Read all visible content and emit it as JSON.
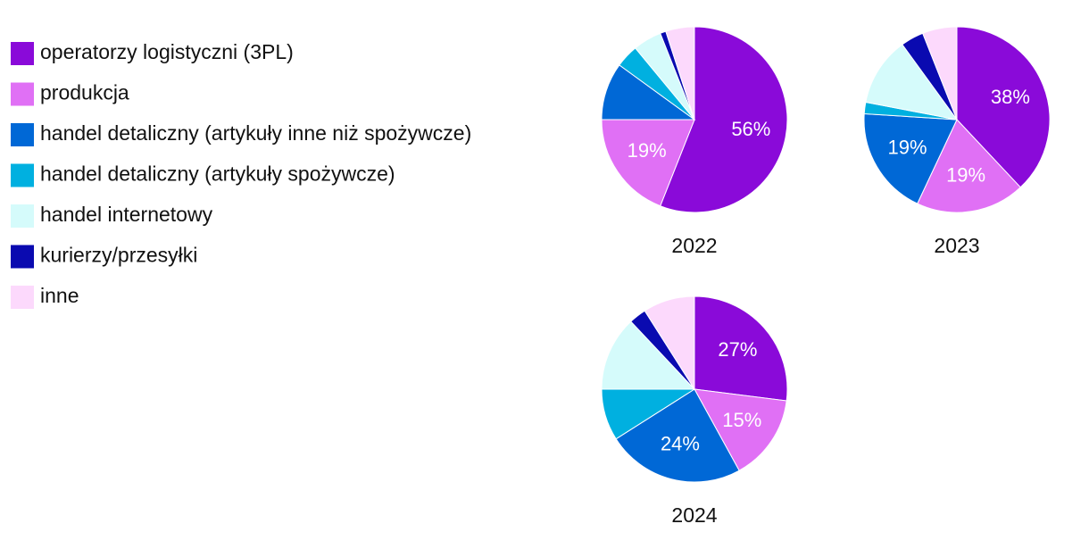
{
  "chart_data": [
    {
      "type": "pie",
      "title": "2022",
      "categories": [
        "operatorzy logistyczni (3PL)",
        "produkcja",
        "handel detaliczny (artykuły inne niż spożywcze)",
        "handel detaliczny (artykuły spożywcze)",
        "handel internetowy",
        "kurierzy/przesyłki",
        "inne"
      ],
      "values": [
        56,
        19,
        10,
        4,
        5,
        1,
        5
      ],
      "value_labels": [
        "56%",
        "19%",
        null,
        null,
        null,
        null,
        null
      ],
      "colors": [
        "#8a0ad9",
        "#e070f5",
        "#0068d6",
        "#00b0e0",
        "#d5fbfb",
        "#0a0ab0",
        "#fcd9fc"
      ]
    },
    {
      "type": "pie",
      "title": "2023",
      "categories": [
        "operatorzy logistyczni (3PL)",
        "produkcja",
        "handel detaliczny (artykuły inne niż spożywcze)",
        "handel detaliczny (artykuły spożywcze)",
        "handel internetowy",
        "kurierzy/przesyłki",
        "inne"
      ],
      "values": [
        38,
        19,
        19,
        2,
        12,
        4,
        6
      ],
      "value_labels": [
        "38%",
        "19%",
        "19%",
        null,
        null,
        null,
        null
      ],
      "colors": [
        "#8a0ad9",
        "#e070f5",
        "#0068d6",
        "#00b0e0",
        "#d5fbfb",
        "#0a0ab0",
        "#fcd9fc"
      ]
    },
    {
      "type": "pie",
      "title": "2024",
      "categories": [
        "operatorzy logistyczni (3PL)",
        "produkcja",
        "handel detaliczny (artykuły inne niż spożywcze)",
        "handel detaliczny (artykuły spożywcze)",
        "handel internetowy",
        "kurierzy/przesyłki",
        "inne"
      ],
      "values": [
        27,
        15,
        24,
        9,
        13,
        3,
        9
      ],
      "value_labels": [
        "27%",
        "15%",
        "24%",
        null,
        null,
        null,
        null
      ],
      "colors": [
        "#8a0ad9",
        "#e070f5",
        "#0068d6",
        "#00b0e0",
        "#d5fbfb",
        "#0a0ab0",
        "#fcd9fc"
      ]
    }
  ]
}
